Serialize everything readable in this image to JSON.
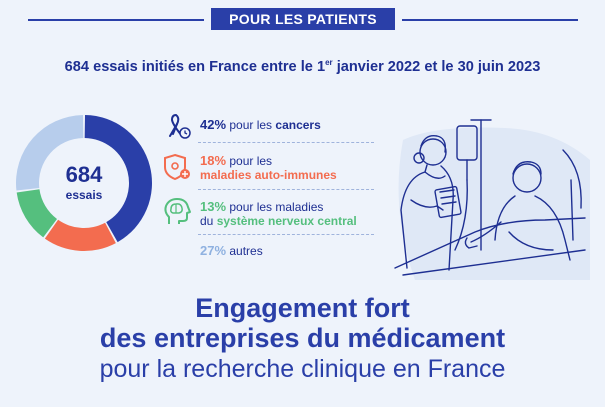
{
  "header": {
    "badge": "POUR LES PATIENTS"
  },
  "headline": {
    "before": "684 essais initiés en France entre le 1",
    "sup": "er",
    "after": " janvier 2022 et le 30 juin 2023"
  },
  "donut": {
    "total": "684",
    "unit": "essais",
    "segments": [
      {
        "value": 42,
        "color": "#2a3fa8"
      },
      {
        "value": 18,
        "color": "#f36c4f"
      },
      {
        "value": 13,
        "color": "#55bf7e"
      },
      {
        "value": 27,
        "color": "#b7cdec"
      }
    ]
  },
  "categories": {
    "cancers": {
      "pct": "42%",
      "text": " pour les ",
      "highlight": "cancers",
      "color": "#1e2f92",
      "icon": "ribbon-icon"
    },
    "autoimmune": {
      "pct": "18%",
      "line1": " pour les",
      "highlight": "maladies auto-immunes",
      "color": "#f36c4f",
      "icon": "shield-cell-icon"
    },
    "snc": {
      "pct": "13%",
      "line1": " pour les maladies",
      "line2": "du ",
      "highlight": "système nerveux central",
      "color": "#55bf7e",
      "icon": "brain-head-icon"
    },
    "autres": {
      "pct": "27%",
      "text": " autres",
      "color": "#8fb1e0"
    }
  },
  "slogan": {
    "line1": "Engagement fort",
    "line2": "des entreprises du médicament",
    "line3": "pour la recherche clinique en France"
  }
}
